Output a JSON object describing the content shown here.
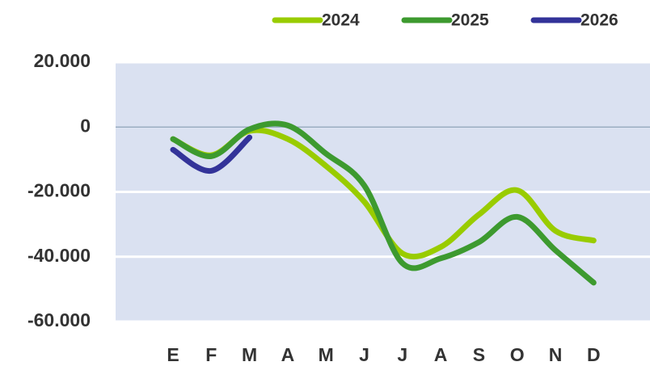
{
  "chart_data": {
    "type": "line",
    "categories": [
      "E",
      "F",
      "M",
      "A",
      "M",
      "J",
      "J",
      "A",
      "S",
      "O",
      "N",
      "D"
    ],
    "series": [
      {
        "name": "2024",
        "color": "#99cc00",
        "values": [
          -3700,
          -8700,
          -1200,
          -3700,
          -12000,
          -23000,
          -39000,
          -37000,
          -27000,
          -19500,
          -32000,
          -35000
        ]
      },
      {
        "name": "2025",
        "color": "#3d9a2f",
        "values": [
          -3700,
          -9000,
          -700,
          500,
          -8200,
          -18000,
          -42000,
          -40500,
          -35500,
          -27700,
          -38000,
          -48000
        ]
      },
      {
        "name": "2026",
        "color": "#333399",
        "values": [
          -7000,
          -13500,
          -3200,
          null,
          null,
          null,
          null,
          null,
          null,
          null,
          null,
          null
        ]
      }
    ],
    "ylim": [
      -60000,
      20000
    ],
    "yticks": [
      {
        "value": -60000,
        "label": "-60.000"
      },
      {
        "value": -40000,
        "label": "-40.000"
      },
      {
        "value": -20000,
        "label": "-20.000"
      },
      0,
      {
        "value": 20000,
        "label": "20.000"
      }
    ],
    "grid": true
  }
}
